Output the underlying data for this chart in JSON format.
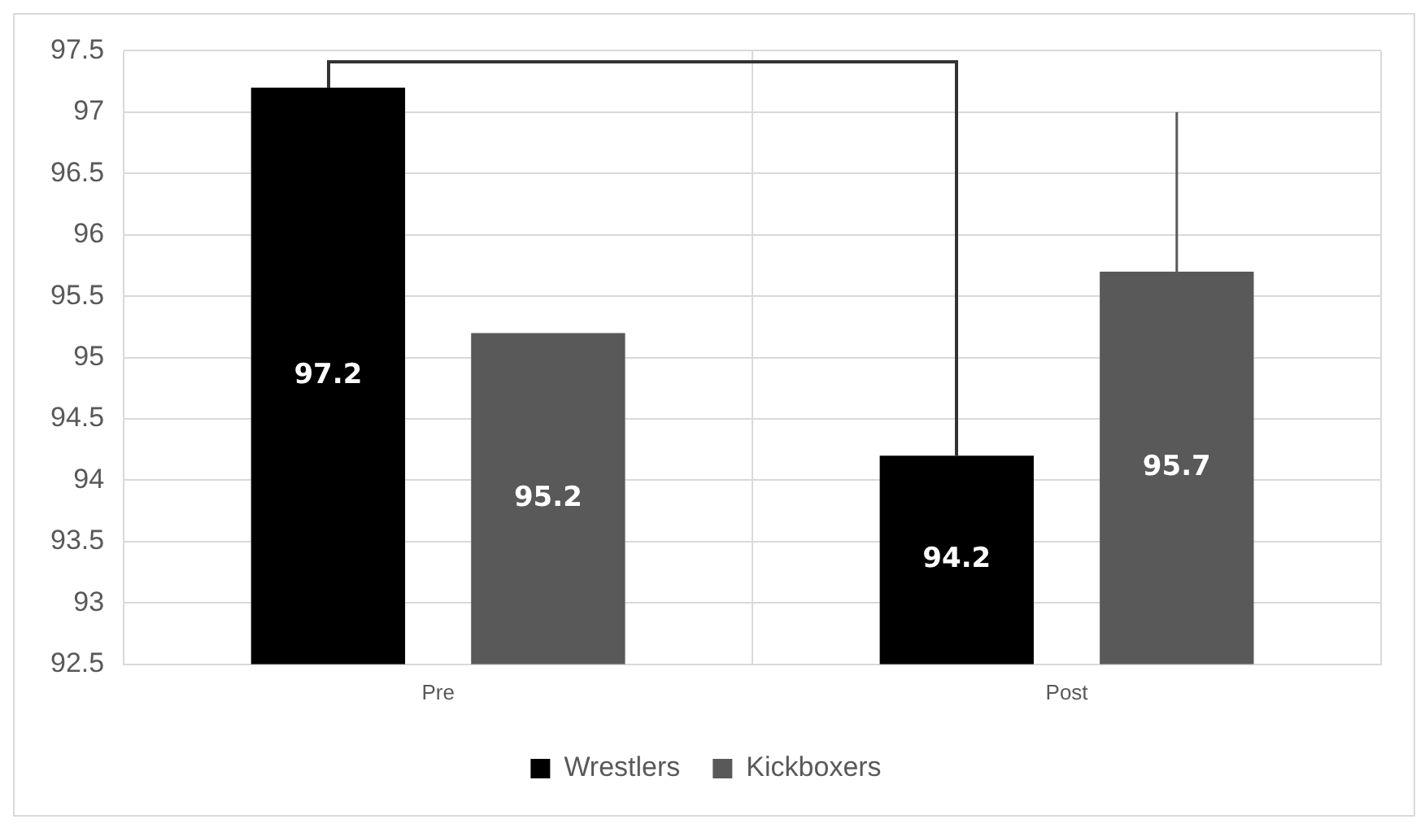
{
  "chart_data": {
    "type": "bar",
    "categories": [
      "Pre",
      "Post"
    ],
    "series": [
      {
        "name": "Wrestlers",
        "color": "#000000",
        "values": [
          97.2,
          94.2
        ]
      },
      {
        "name": "Kickboxers",
        "color": "#595959",
        "values": [
          95.2,
          95.7
        ],
        "errors": [
          null,
          [
            95.7,
            97
          ]
        ]
      }
    ],
    "ylim": [
      92.5,
      97.5
    ],
    "yticks": [
      92.5,
      93,
      93.5,
      94,
      94.5,
      95,
      95.5,
      96,
      96.5,
      97,
      97.5
    ],
    "grid": true,
    "legend": "bottom",
    "data_labels": true
  }
}
